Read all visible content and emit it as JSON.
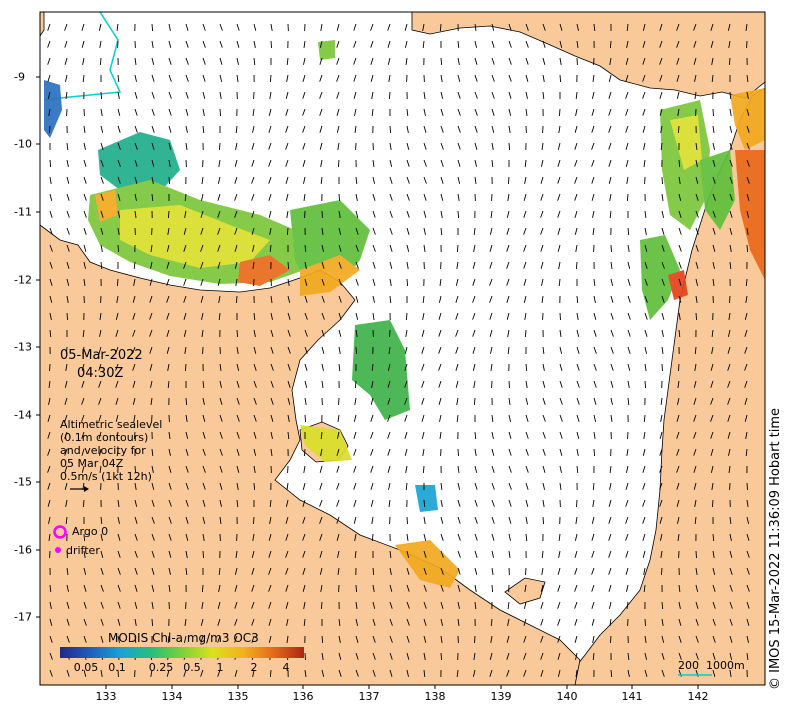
{
  "timestamp": {
    "date": "05-Mar-2022",
    "time": "04:30Z"
  },
  "altimetry_note": {
    "lines": [
      "Altimetric sealevel",
      "(0.1m contours)",
      "and velocity for",
      "05 Mar 04Z",
      "0.5m/s (1kt 12h)"
    ]
  },
  "legend": {
    "argo_label": "Argo 0",
    "drifter_label": "drifter",
    "argo_color": "#ff00ff",
    "drifter_color": "#ff00ff"
  },
  "colorbar": {
    "title": "MODIS Chl-a mg/m3 OC3",
    "ticks": [
      "0.05",
      "0.1",
      "0.25",
      "0.5",
      "1",
      "2",
      "4"
    ]
  },
  "axes": {
    "x_ticks": [
      "133",
      "134",
      "135",
      "136",
      "137",
      "138",
      "139",
      "140",
      "141",
      "142"
    ],
    "y_ticks": [
      "-9",
      "-10",
      "-11",
      "-12",
      "-13",
      "-14",
      "-15",
      "-16",
      "-17"
    ]
  },
  "isobath_labels": {
    "a": "200",
    "b": "1000m"
  },
  "credit": "© IMOS 15-Mar-2022 11:36:09 Hobart time",
  "colors": {
    "land": "#f9c99a",
    "sea": "#ffffff",
    "arrow": "#000000",
    "isobath": "#00d0d0"
  }
}
